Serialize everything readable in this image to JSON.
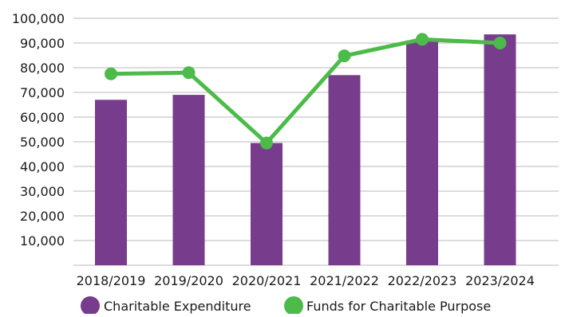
{
  "chart_data": {
    "type": "bar",
    "title": "",
    "xlabel": "",
    "ylabel": "",
    "categories": [
      "2018/2019",
      "2019/2020",
      "2020/2021",
      "2021/2022",
      "2022/2023",
      "2023/2024"
    ],
    "ylim": [
      0,
      100000
    ],
    "yticks": [
      10000,
      20000,
      30000,
      40000,
      50000,
      60000,
      70000,
      80000,
      90000,
      100000
    ],
    "ytick_labels": [
      "10,000",
      "20,000",
      "30,000",
      "40,000",
      "50,000",
      "60,000",
      "70,000",
      "80,000",
      "90,000",
      "100,000"
    ],
    "grid": true,
    "legend_position": "bottom",
    "series": [
      {
        "name": "Charitable Expenditure",
        "type": "bar",
        "color": "#783c8c",
        "values": [
          67000,
          69000,
          49500,
          77000,
          91000,
          93500
        ]
      },
      {
        "name": "Funds for Charitable Purpose",
        "type": "line",
        "color": "#4cbb4a",
        "values": [
          77500,
          78000,
          49500,
          84800,
          91500,
          90000
        ]
      }
    ]
  }
}
